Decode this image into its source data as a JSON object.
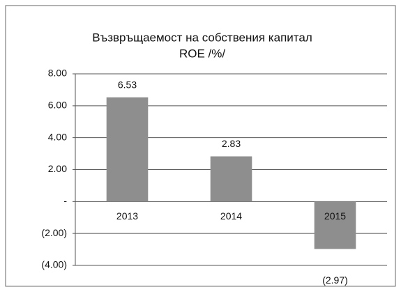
{
  "chart_data": {
    "type": "bar",
    "title": [
      "Възвръщаемост на собствения капитал",
      "ROE /%/"
    ],
    "categories": [
      "2013",
      "2014",
      "2015"
    ],
    "values": [
      6.53,
      2.83,
      -2.97
    ],
    "value_labels": [
      "6.53",
      "2.83",
      "(2.97)"
    ],
    "color": "#8e8e8e",
    "ylim": [
      -4,
      8
    ],
    "yticks": [
      {
        "value": 8,
        "label": "8.00"
      },
      {
        "value": 6,
        "label": "6.00"
      },
      {
        "value": 4,
        "label": "4.00"
      },
      {
        "value": 2,
        "label": "2.00"
      },
      {
        "value": 0,
        "label": "-"
      },
      {
        "value": -2,
        "label": "(2.00)"
      },
      {
        "value": -4,
        "label": "(4.00)"
      }
    ],
    "grid": true
  }
}
